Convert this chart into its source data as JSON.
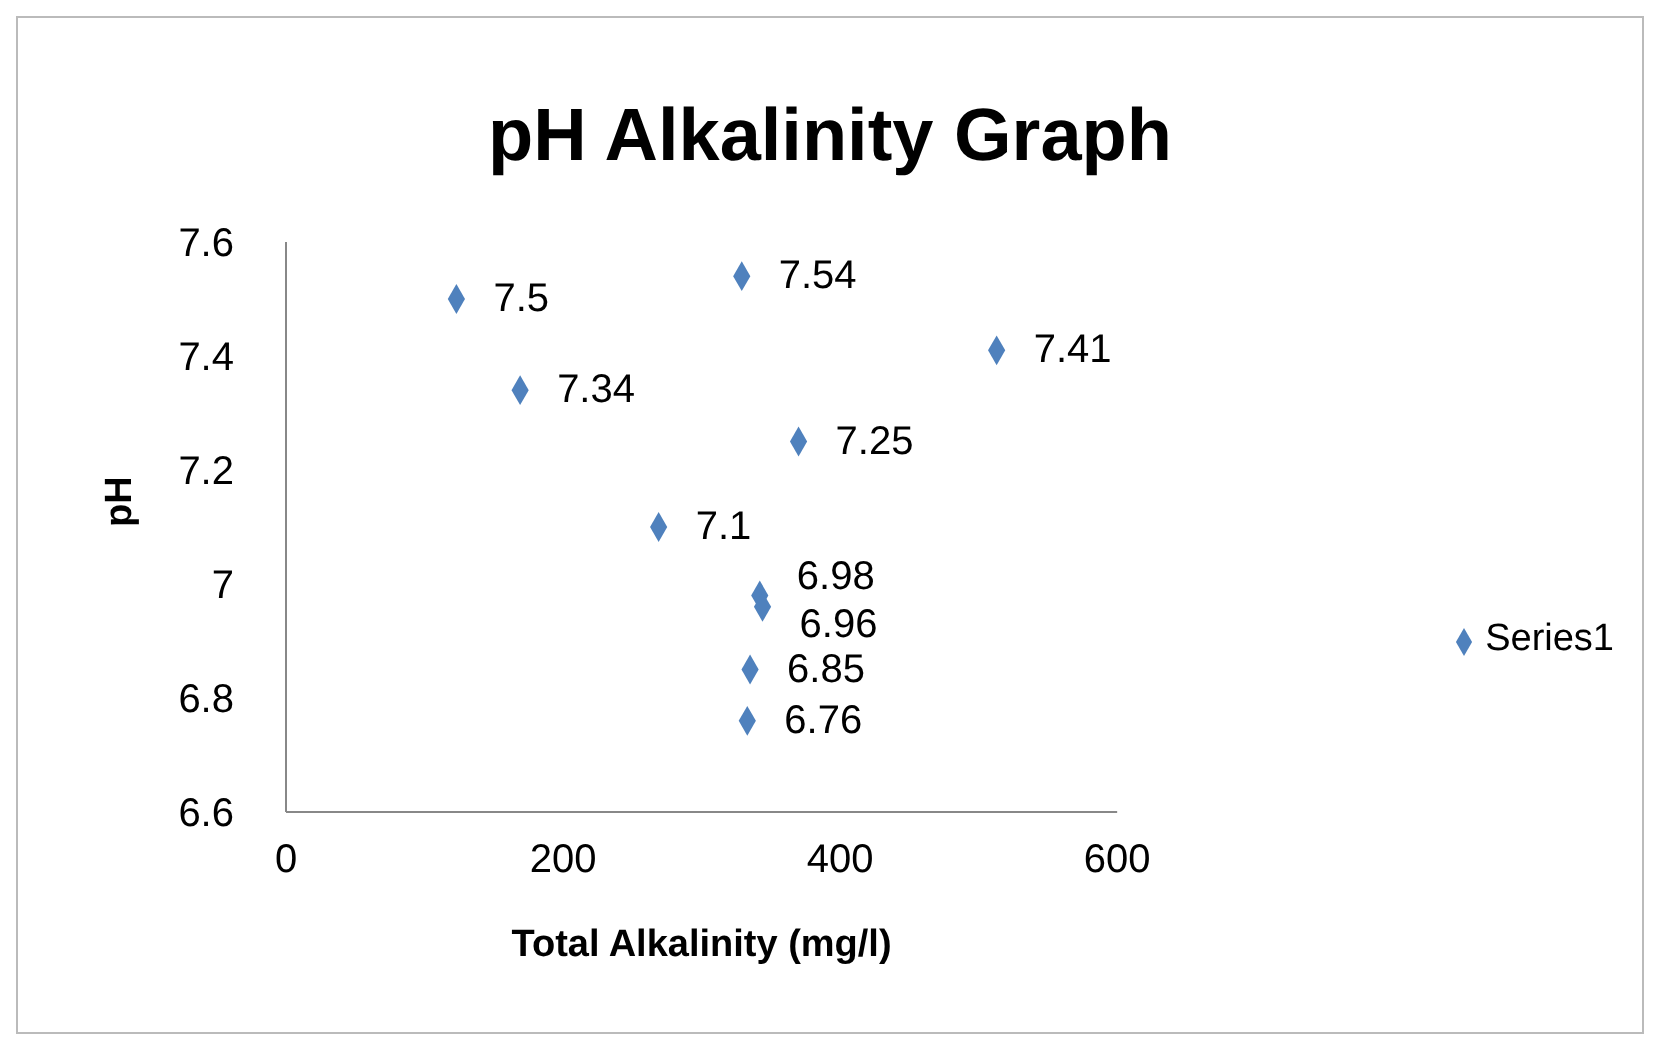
{
  "chart_data": {
    "type": "scatter",
    "title": "pH Alkalinity Graph",
    "xlabel": "Total Alkalinity (mg/l)",
    "ylabel": "pH",
    "x": [
      123,
      169,
      329,
      513,
      370,
      269,
      342,
      344,
      335,
      333
    ],
    "series": [
      {
        "name": "Series1",
        "color": "#4f81bd",
        "values": [
          7.5,
          7.34,
          7.54,
          7.41,
          7.25,
          7.1,
          6.98,
          6.96,
          6.85,
          6.76
        ]
      }
    ],
    "xlim": [
      0,
      600
    ],
    "xticks": [
      0,
      200,
      400,
      600
    ],
    "ylim": [
      6.6,
      7.6
    ],
    "yticks": [
      6.6,
      6.8,
      7,
      7.2,
      7.4,
      7.6
    ],
    "data_labels": true,
    "marker": "diamond",
    "legend": "right"
  }
}
